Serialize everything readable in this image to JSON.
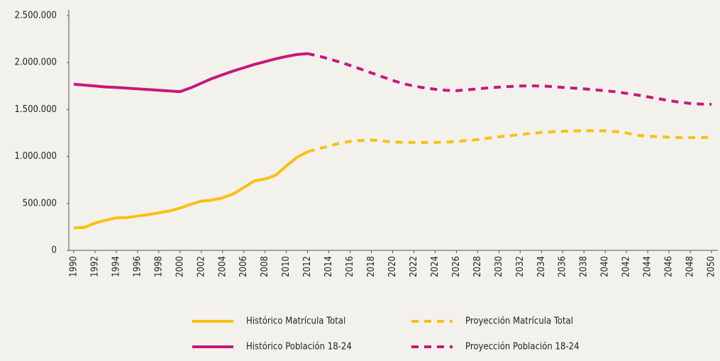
{
  "chart_data": {
    "type": "line",
    "x": [
      1990,
      1991,
      1992,
      1993,
      1994,
      1995,
      1996,
      1997,
      1998,
      1999,
      2000,
      2001,
      2002,
      2003,
      2004,
      2005,
      2006,
      2007,
      2008,
      2009,
      2010,
      2011,
      2012,
      2013,
      2014,
      2015,
      2016,
      2017,
      2018,
      2019,
      2020,
      2021,
      2022,
      2023,
      2024,
      2025,
      2026,
      2027,
      2028,
      2029,
      2030,
      2031,
      2032,
      2033,
      2034,
      2035,
      2036,
      2037,
      2038,
      2039,
      2040,
      2041,
      2042,
      2043,
      2044,
      2045,
      2046,
      2047,
      2048,
      2049,
      2050
    ],
    "xlim": [
      1990,
      2050
    ],
    "xticks": [
      1990,
      1992,
      1994,
      1996,
      1998,
      2000,
      2002,
      2004,
      2006,
      2008,
      2010,
      2012,
      2014,
      2016,
      2018,
      2020,
      2022,
      2024,
      2026,
      2028,
      2030,
      2032,
      2034,
      2036,
      2038,
      2040,
      2042,
      2044,
      2046,
      2048,
      2050
    ],
    "ylim": [
      0,
      2500000
    ],
    "yticks": [
      0,
      {
        "value": 500000,
        "label": "500.000"
      },
      {
        "value": 1000000,
        "label": "1.000.000"
      },
      {
        "value": 1500000,
        "label": "1.500.000"
      },
      {
        "value": 2000000,
        "label": "2.000.000"
      },
      {
        "value": 2500000,
        "label": "2.500.000"
      }
    ],
    "series": [
      {
        "name": "Histórico Matrícula Total",
        "color": "#fbbf0f",
        "style": "solid",
        "values": [
          240000,
          245000,
          290000,
          320000,
          345000,
          350000,
          365000,
          380000,
          400000,
          420000,
          450000,
          490000,
          525000,
          535000,
          560000,
          600000,
          670000,
          740000,
          760000,
          800000,
          900000,
          990000,
          1050000,
          null,
          null,
          null,
          null,
          null,
          null,
          null,
          null,
          null,
          null,
          null,
          null,
          null,
          null,
          null,
          null,
          null,
          null,
          null,
          null,
          null,
          null,
          null,
          null,
          null,
          null,
          null,
          null,
          null,
          null,
          null,
          null,
          null,
          null,
          null,
          null,
          null,
          null
        ]
      },
      {
        "name": "Proyección Matrícula Total",
        "color": "#fbbf0f",
        "style": "dashed",
        "values": [
          null,
          null,
          null,
          null,
          null,
          null,
          null,
          null,
          null,
          null,
          null,
          null,
          null,
          null,
          null,
          null,
          null,
          null,
          null,
          null,
          null,
          null,
          1050000,
          1080000,
          1110000,
          1140000,
          1160000,
          1170000,
          1175000,
          1165000,
          1155000,
          1150000,
          1150000,
          1148000,
          1150000,
          1152000,
          1160000,
          1170000,
          1180000,
          1195000,
          1210000,
          1220000,
          1235000,
          1245000,
          1255000,
          1262000,
          1268000,
          1272000,
          1275000,
          1275000,
          1272000,
          1265000,
          1250000,
          1225000,
          1215000,
          1210000,
          1205000,
          1202000,
          1200000,
          1202000,
          1205000
        ]
      },
      {
        "name": "Histórico Población 18-24",
        "color": "#c8177b",
        "style": "solid",
        "values": [
          1770000,
          1760000,
          1750000,
          1740000,
          1735000,
          1728000,
          1720000,
          1712000,
          1705000,
          1698000,
          1690000,
          1730000,
          1780000,
          1830000,
          1870000,
          1910000,
          1945000,
          1980000,
          2010000,
          2040000,
          2065000,
          2085000,
          2095000,
          null,
          null,
          null,
          null,
          null,
          null,
          null,
          null,
          null,
          null,
          null,
          null,
          null,
          null,
          null,
          null,
          null,
          null,
          null,
          null,
          null,
          null,
          null,
          null,
          null,
          null,
          null,
          null,
          null,
          null,
          null,
          null,
          null,
          null,
          null,
          null,
          null,
          null
        ]
      },
      {
        "name": "Proyección Población 18-24",
        "color": "#c8177b",
        "style": "dashed",
        "values": [
          null,
          null,
          null,
          null,
          null,
          null,
          null,
          null,
          null,
          null,
          null,
          null,
          null,
          null,
          null,
          null,
          null,
          null,
          null,
          null,
          null,
          null,
          2095000,
          2070000,
          2040000,
          2005000,
          1970000,
          1930000,
          1890000,
          1850000,
          1810000,
          1775000,
          1750000,
          1730000,
          1715000,
          1705000,
          1700000,
          1710000,
          1720000,
          1730000,
          1738000,
          1745000,
          1750000,
          1752000,
          1750000,
          1745000,
          1735000,
          1728000,
          1720000,
          1710000,
          1700000,
          1688000,
          1672000,
          1655000,
          1635000,
          1615000,
          1595000,
          1578000,
          1565000,
          1558000,
          1555000
        ]
      }
    ]
  }
}
